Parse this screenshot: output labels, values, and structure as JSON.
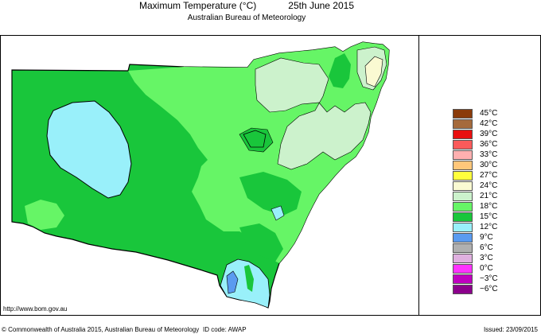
{
  "header": {
    "title": "Maximum Temperature (°C)",
    "date": "25th June 2015",
    "subtitle": "Australian Bureau of Meteorology"
  },
  "map": {
    "region": "New South Wales",
    "colors": {
      "c12": "#19c63b",
      "c15": "#66f566",
      "c18": "#ccf2cc",
      "c21": "#fafad2",
      "c9": "#99f0fa",
      "c6": "#5a9bf0",
      "border": "#000000"
    }
  },
  "legend": {
    "items": [
      {
        "label": "45°C",
        "color": "#8b3b0a"
      },
      {
        "label": "42°C",
        "color": "#a56a3c"
      },
      {
        "label": "39°C",
        "color": "#e80f0f"
      },
      {
        "label": "36°C",
        "color": "#fb5a5a"
      },
      {
        "label": "33°C",
        "color": "#ffb0b0"
      },
      {
        "label": "30°C",
        "color": "#ffc77a"
      },
      {
        "label": "27°C",
        "color": "#ffff3c"
      },
      {
        "label": "24°C",
        "color": "#fafad2"
      },
      {
        "label": "21°C",
        "color": "#ccf2cc"
      },
      {
        "label": "18°C",
        "color": "#66f566"
      },
      {
        "label": "15°C",
        "color": "#19c63b"
      },
      {
        "label": "12°C",
        "color": "#99f0fa"
      },
      {
        "label": "9°C",
        "color": "#5a9bf0"
      },
      {
        "label": "6°C",
        "color": "#b0b0b0"
      },
      {
        "label": "3°C",
        "color": "#e0b0e0"
      },
      {
        "label": "0°C",
        "color": "#ff33ff"
      },
      {
        "label": "−3°C",
        "color": "#c000c0"
      },
      {
        "label": "−6°C",
        "color": "#8c008c"
      }
    ]
  },
  "footer": {
    "url": "http://www.bom.gov.au",
    "copyright": "© Commonwealth of Australia 2015, Australian Bureau of Meteorology",
    "id_code": "ID code: AWAP",
    "issued": "Issued: 23/09/2015"
  }
}
